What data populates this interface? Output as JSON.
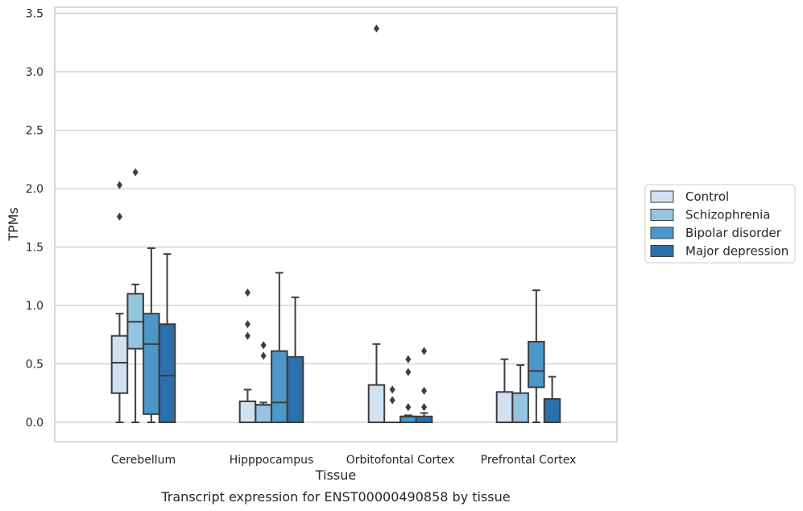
{
  "chart_data": {
    "type": "box",
    "title": "Transcript expression for ENST00000490858 by tissue",
    "xlabel": "Tissue",
    "ylabel": "TPMs",
    "ylim": [
      -0.16,
      3.55
    ],
    "yticks": [
      "0.0",
      "0.5",
      "1.0",
      "1.5",
      "2.0",
      "2.5",
      "3.0",
      "3.5"
    ],
    "grid": "horizontal",
    "legend_position": "right",
    "categories": [
      "Cerebellum",
      "Hipppocampus",
      "Orbitofontal Cortex",
      "Prefrontal Cortex"
    ],
    "series": [
      {
        "name": "Control",
        "color": "#d0e1f2",
        "boxes": [
          {
            "whislo": 0.0,
            "q1": 0.25,
            "med": 0.51,
            "q3": 0.74,
            "whishi": 0.93,
            "fliers": [
              1.76,
              2.03
            ]
          },
          {
            "whislo": 0.0,
            "q1": 0.0,
            "med": 0.0,
            "q3": 0.18,
            "whishi": 0.28,
            "fliers": [
              0.74,
              0.84,
              1.11
            ]
          },
          {
            "whislo": 0.0,
            "q1": 0.0,
            "med": 0.0,
            "q3": 0.32,
            "whishi": 0.67,
            "fliers": [
              3.37
            ]
          },
          {
            "whislo": 0.0,
            "q1": 0.0,
            "med": 0.0,
            "q3": 0.26,
            "whishi": 0.54,
            "fliers": []
          }
        ]
      },
      {
        "name": "Schizophrenia",
        "color": "#94c4df",
        "boxes": [
          {
            "whislo": 0.0,
            "q1": 0.63,
            "med": 0.86,
            "q3": 1.1,
            "whishi": 1.18,
            "fliers": [
              2.14
            ]
          },
          {
            "whislo": 0.0,
            "q1": 0.0,
            "med": 0.15,
            "q3": 0.15,
            "whishi": 0.17,
            "fliers": [
              0.57,
              0.66
            ]
          },
          {
            "whislo": 0.0,
            "q1": 0.0,
            "med": 0.0,
            "q3": 0.0,
            "whishi": 0.0,
            "fliers": [
              0.19,
              0.28
            ]
          },
          {
            "whislo": 0.0,
            "q1": 0.0,
            "med": 0.0,
            "q3": 0.25,
            "whishi": 0.49,
            "fliers": []
          }
        ]
      },
      {
        "name": "Bipolar disorder",
        "color": "#4b97c9",
        "boxes": [
          {
            "whislo": 0.0,
            "q1": 0.07,
            "med": 0.67,
            "q3": 0.93,
            "whishi": 1.49,
            "fliers": []
          },
          {
            "whislo": 0.0,
            "q1": 0.0,
            "med": 0.17,
            "q3": 0.61,
            "whishi": 1.28,
            "fliers": []
          },
          {
            "whislo": 0.0,
            "q1": 0.0,
            "med": 0.05,
            "q3": 0.05,
            "whishi": 0.06,
            "fliers": [
              0.13,
              0.43,
              0.54
            ]
          },
          {
            "whislo": 0.0,
            "q1": 0.3,
            "med": 0.44,
            "q3": 0.69,
            "whishi": 1.13,
            "fliers": []
          }
        ]
      },
      {
        "name": "Major depression",
        "color": "#2c6fad",
        "boxes": [
          {
            "whislo": 0.0,
            "q1": 0.0,
            "med": 0.4,
            "q3": 0.84,
            "whishi": 1.44,
            "fliers": []
          },
          {
            "whislo": 0.0,
            "q1": 0.0,
            "med": 0.0,
            "q3": 0.56,
            "whishi": 1.07,
            "fliers": []
          },
          {
            "whislo": 0.0,
            "q1": 0.0,
            "med": 0.0,
            "q3": 0.05,
            "whishi": 0.08,
            "fliers": [
              0.13,
              0.27,
              0.61
            ]
          },
          {
            "whislo": 0.0,
            "q1": 0.0,
            "med": 0.0,
            "q3": 0.2,
            "whishi": 0.39,
            "fliers": []
          }
        ]
      }
    ]
  }
}
